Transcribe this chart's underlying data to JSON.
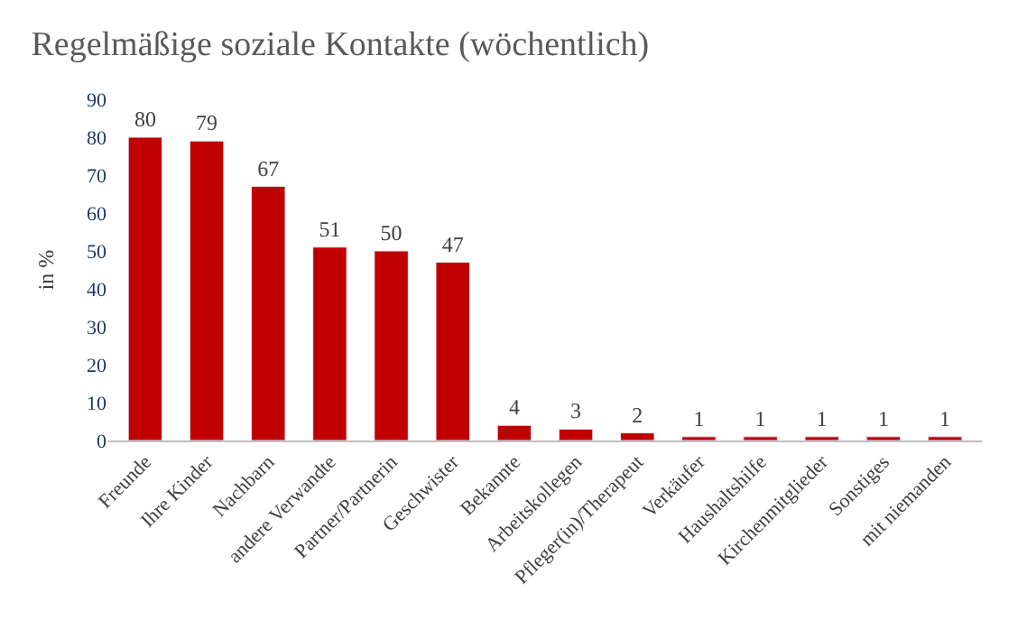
{
  "chart_data": {
    "type": "bar",
    "title": "Regelmäßige soziale Kontakte (wöchentlich)",
    "ylabel": "in %",
    "categories": [
      "Freunde",
      "Ihre Kinder",
      "Nachbarn",
      "andere Verwandte",
      "Partner/Partnerin",
      "Geschwister",
      "Bekannte",
      "Arbeitskollegen",
      "Pfleger(in)/Therapeut",
      "Verkäufer",
      "Haushaltshilfe",
      "Kirchenmitglieder",
      "Sonstiges",
      "mit niemanden"
    ],
    "values": [
      80,
      79,
      67,
      51,
      50,
      47,
      4,
      3,
      2,
      1,
      1,
      1,
      1,
      1
    ],
    "color": "#c00000",
    "ylim": [
      0,
      90
    ],
    "yticks": [
      0,
      10,
      20,
      30,
      40,
      50,
      60,
      70,
      80,
      90
    ],
    "data_labels": true
  }
}
